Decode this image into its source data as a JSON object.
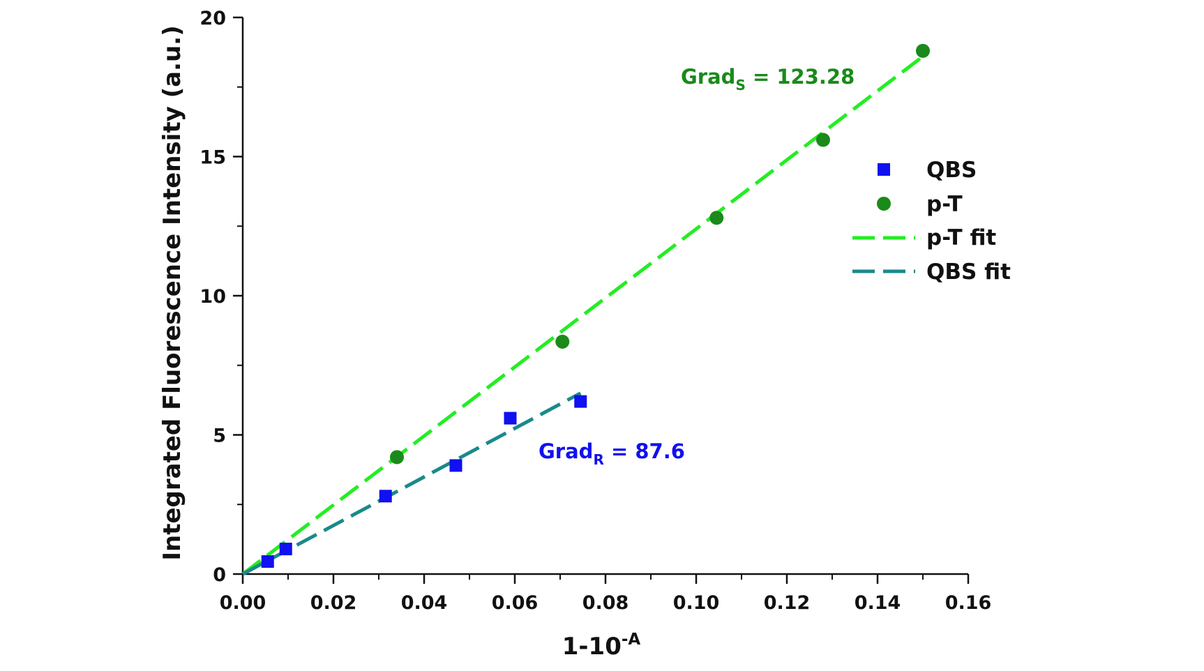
{
  "chart_data": {
    "type": "scatter",
    "title": "",
    "xlabel_base": "1-10",
    "xlabel_sup": "-A",
    "ylabel": "Integrated Fluorescence Intensity (a.u.)",
    "xlim": [
      0,
      0.16
    ],
    "ylim": [
      0,
      20
    ],
    "x_ticks": [
      0,
      0.02,
      0.04,
      0.06,
      0.08,
      0.1,
      0.12,
      0.14,
      0.16
    ],
    "x_tick_labels": [
      "0.00",
      "0.02",
      "0.04",
      "0.06",
      "0.08",
      "0.10",
      "0.12",
      "0.14",
      "0.16"
    ],
    "y_ticks": [
      0,
      5,
      10,
      15,
      20
    ],
    "y_tick_labels": [
      "0",
      "5",
      "10",
      "15",
      "20"
    ],
    "grid": false,
    "legend_position": "top-right",
    "series": [
      {
        "name": "QBS",
        "kind": "points",
        "marker": "square",
        "color": "#1010f0",
        "x": [
          0.0055,
          0.0095,
          0.0315,
          0.047,
          0.059,
          0.0745
        ],
        "y": [
          0.45,
          0.9,
          2.8,
          3.9,
          5.6,
          6.2
        ]
      },
      {
        "name": "p-T",
        "kind": "points",
        "marker": "circle",
        "color": "#1a8a1a",
        "x": [
          0.034,
          0.0705,
          0.1045,
          0.128,
          0.15
        ],
        "y": [
          4.2,
          8.35,
          12.8,
          15.6,
          18.8
        ]
      },
      {
        "name": "p-T fit",
        "kind": "line",
        "dash": true,
        "color": "#22ee22",
        "x": [
          0,
          0.15
        ],
        "y": [
          0,
          18.6
        ]
      },
      {
        "name": "QBS fit",
        "kind": "line",
        "dash": true,
        "color": "#1a8a8a",
        "x": [
          0,
          0.0745
        ],
        "y": [
          0,
          6.5
        ]
      }
    ],
    "annotations": [
      {
        "id": "grad-s",
        "base": "Grad",
        "sub": "S",
        "rest": " = 123.28",
        "color": "#1a8a1a"
      },
      {
        "id": "grad-r",
        "base": "Grad",
        "sub": "R",
        "rest": " = 87.6",
        "color": "#1010f0"
      }
    ]
  }
}
